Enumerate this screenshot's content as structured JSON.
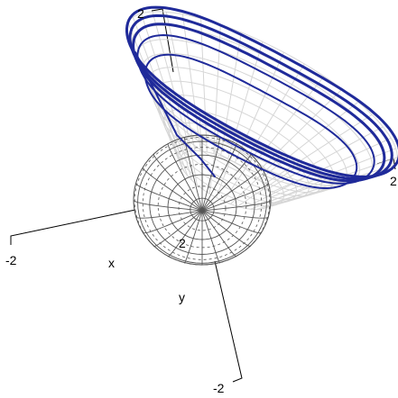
{
  "scene": {
    "colors": {
      "background": "#ffffff",
      "sphere_mesh": "#555555",
      "cone_mesh": "#d6d6d6",
      "curve": "#1f2a9a",
      "axes": "#000000"
    },
    "axes": {
      "x_label": "x",
      "y_label": "y",
      "x_tick_left": "-2",
      "y_tick_bottom": "-2",
      "z_tick_top": "2",
      "right_tick": "2",
      "inner_tick": "2"
    }
  }
}
